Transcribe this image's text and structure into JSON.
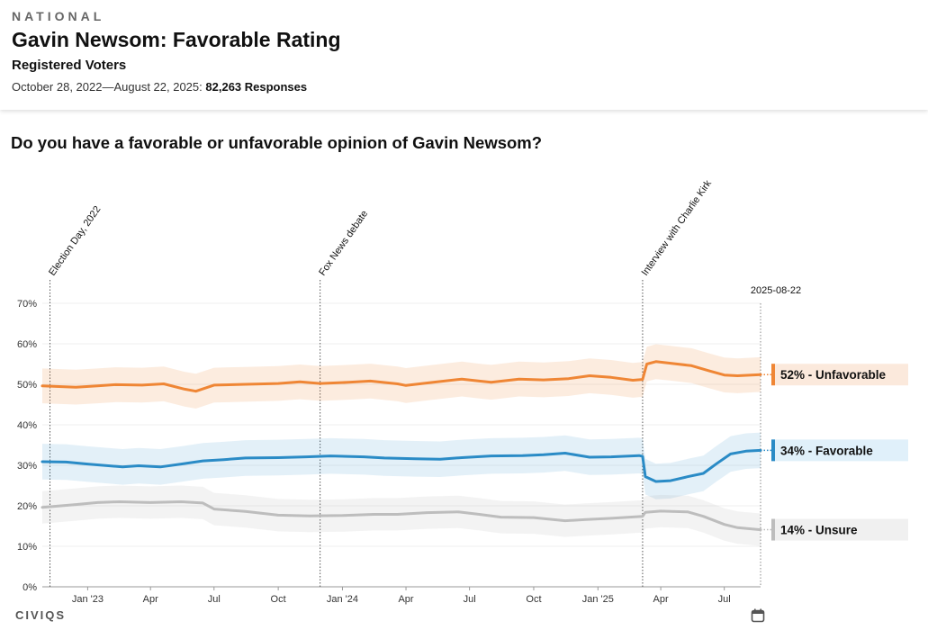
{
  "header": {
    "eyebrow": "NATIONAL",
    "title": "Gavin Newsom: Favorable Rating",
    "subtitle": "Registered Voters",
    "date_range": "October 28, 2022—August 22, 2025:",
    "responses": "82,263 Responses"
  },
  "question": "Do you have a favorable or unfavorable opinion of Gavin Newsom?",
  "footer": {
    "brand": "CIVIQS",
    "calendar_icon": "calendar-icon"
  },
  "colors": {
    "unfavorable": "#ef8635",
    "favorable": "#2a8bc6",
    "unsure": "#bdbdbd"
  },
  "chart_data": {
    "type": "line",
    "title": "Do you have a favorable or unfavorable opinion of Gavin Newsom?",
    "xlabel": "",
    "ylabel": "",
    "ylim": [
      0,
      70
    ],
    "y_ticks": [
      "0%",
      "10%",
      "20%",
      "30%",
      "40%",
      "50%",
      "60%",
      "70%"
    ],
    "x_ticks": [
      "Jan '23",
      "Apr",
      "Jul",
      "Oct",
      "Jan '24",
      "Apr",
      "Jul",
      "Oct",
      "Jan '25",
      "Apr",
      "Jul"
    ],
    "x_tick_dates": [
      "2023-01-01",
      "2023-04-01",
      "2023-07-01",
      "2023-10-01",
      "2024-01-01",
      "2024-04-01",
      "2024-07-01",
      "2024-10-01",
      "2025-01-01",
      "2025-04-01",
      "2025-07-01"
    ],
    "x_range": [
      "2022-10-28",
      "2025-08-22"
    ],
    "end_date_label": "2025-08-22",
    "annotations": [
      {
        "date": "2022-11-08",
        "label": "Election Day, 2022"
      },
      {
        "date": "2023-11-30",
        "label": "Fox News debate"
      },
      {
        "date": "2025-03-06",
        "label": "Interview with Charlie Kirk"
      }
    ],
    "series": [
      {
        "name": "Unfavorable",
        "end_label": "52% - Unfavorable",
        "color_key": "unfavorable",
        "points": [
          [
            "2022-10-28",
            49.6
          ],
          [
            "2022-12-15",
            49.3
          ],
          [
            "2023-01-15",
            49.6
          ],
          [
            "2023-02-10",
            49.9
          ],
          [
            "2023-03-20",
            49.8
          ],
          [
            "2023-04-20",
            50.1
          ],
          [
            "2023-05-20",
            48.8
          ],
          [
            "2023-06-05",
            48.3
          ],
          [
            "2023-07-01",
            49.8
          ],
          [
            "2023-08-15",
            50.0
          ],
          [
            "2023-10-01",
            50.2
          ],
          [
            "2023-11-01",
            50.6
          ],
          [
            "2023-11-30",
            50.2
          ],
          [
            "2024-01-10",
            50.5
          ],
          [
            "2024-02-10",
            50.8
          ],
          [
            "2024-03-20",
            50.1
          ],
          [
            "2024-04-01",
            49.7
          ],
          [
            "2024-05-10",
            50.5
          ],
          [
            "2024-06-20",
            51.3
          ],
          [
            "2024-07-15",
            50.8
          ],
          [
            "2024-08-01",
            50.5
          ],
          [
            "2024-09-10",
            51.3
          ],
          [
            "2024-10-15",
            51.1
          ],
          [
            "2024-11-20",
            51.4
          ],
          [
            "2024-12-20",
            52.1
          ],
          [
            "2025-01-20",
            51.7
          ],
          [
            "2025-02-20",
            51.0
          ],
          [
            "2025-03-06",
            51.2
          ],
          [
            "2025-03-12",
            55.0
          ],
          [
            "2025-03-25",
            55.6
          ],
          [
            "2025-04-15",
            55.2
          ],
          [
            "2025-05-15",
            54.6
          ],
          [
            "2025-06-10",
            53.3
          ],
          [
            "2025-07-01",
            52.3
          ],
          [
            "2025-07-20",
            52.1
          ],
          [
            "2025-08-22",
            52.4
          ]
        ],
        "band": 4.3
      },
      {
        "name": "Favorable",
        "end_label": "34% - Favorable",
        "color_key": "favorable",
        "points": [
          [
            "2022-10-28",
            30.9
          ],
          [
            "2022-12-01",
            30.8
          ],
          [
            "2023-01-01",
            30.3
          ],
          [
            "2023-02-20",
            29.6
          ],
          [
            "2023-03-15",
            29.9
          ],
          [
            "2023-04-15",
            29.6
          ],
          [
            "2023-05-15",
            30.3
          ],
          [
            "2023-06-15",
            31.1
          ],
          [
            "2023-07-15",
            31.4
          ],
          [
            "2023-08-15",
            31.8
          ],
          [
            "2023-10-01",
            31.9
          ],
          [
            "2023-11-10",
            32.1
          ],
          [
            "2023-12-15",
            32.3
          ],
          [
            "2024-02-01",
            32.1
          ],
          [
            "2024-03-01",
            31.8
          ],
          [
            "2024-04-15",
            31.6
          ],
          [
            "2024-05-20",
            31.5
          ],
          [
            "2024-06-20",
            31.9
          ],
          [
            "2024-08-01",
            32.3
          ],
          [
            "2024-09-15",
            32.4
          ],
          [
            "2024-10-15",
            32.6
          ],
          [
            "2024-11-15",
            33.0
          ],
          [
            "2024-12-20",
            32.0
          ],
          [
            "2025-01-20",
            32.1
          ],
          [
            "2025-03-01",
            32.4
          ],
          [
            "2025-03-06",
            32.2
          ],
          [
            "2025-03-10",
            27.2
          ],
          [
            "2025-03-25",
            26.0
          ],
          [
            "2025-04-15",
            26.2
          ],
          [
            "2025-05-10",
            27.2
          ],
          [
            "2025-06-01",
            28.0
          ],
          [
            "2025-06-20",
            30.4
          ],
          [
            "2025-07-10",
            32.8
          ],
          [
            "2025-08-01",
            33.5
          ],
          [
            "2025-08-22",
            33.7
          ]
        ],
        "band": 4.4
      },
      {
        "name": "Unsure",
        "end_label": "14% - Unsure",
        "color_key": "unsure",
        "points": [
          [
            "2022-10-28",
            19.6
          ],
          [
            "2022-12-15",
            20.3
          ],
          [
            "2023-01-15",
            20.8
          ],
          [
            "2023-02-15",
            21.0
          ],
          [
            "2023-04-01",
            20.8
          ],
          [
            "2023-05-15",
            21.0
          ],
          [
            "2023-06-15",
            20.7
          ],
          [
            "2023-07-01",
            19.2
          ],
          [
            "2023-08-15",
            18.6
          ],
          [
            "2023-10-01",
            17.7
          ],
          [
            "2023-11-15",
            17.5
          ],
          [
            "2024-01-01",
            17.6
          ],
          [
            "2024-02-15",
            17.9
          ],
          [
            "2024-03-20",
            17.9
          ],
          [
            "2024-05-01",
            18.3
          ],
          [
            "2024-06-15",
            18.5
          ],
          [
            "2024-07-15",
            17.9
          ],
          [
            "2024-08-15",
            17.2
          ],
          [
            "2024-10-01",
            17.1
          ],
          [
            "2024-11-15",
            16.3
          ],
          [
            "2024-12-15",
            16.6
          ],
          [
            "2025-01-20",
            16.9
          ],
          [
            "2025-03-06",
            17.4
          ],
          [
            "2025-03-10",
            18.4
          ],
          [
            "2025-04-01",
            18.7
          ],
          [
            "2025-05-10",
            18.5
          ],
          [
            "2025-06-01",
            17.4
          ],
          [
            "2025-07-01",
            15.4
          ],
          [
            "2025-07-20",
            14.6
          ],
          [
            "2025-08-22",
            14.1
          ]
        ],
        "band": 4.0
      }
    ]
  }
}
